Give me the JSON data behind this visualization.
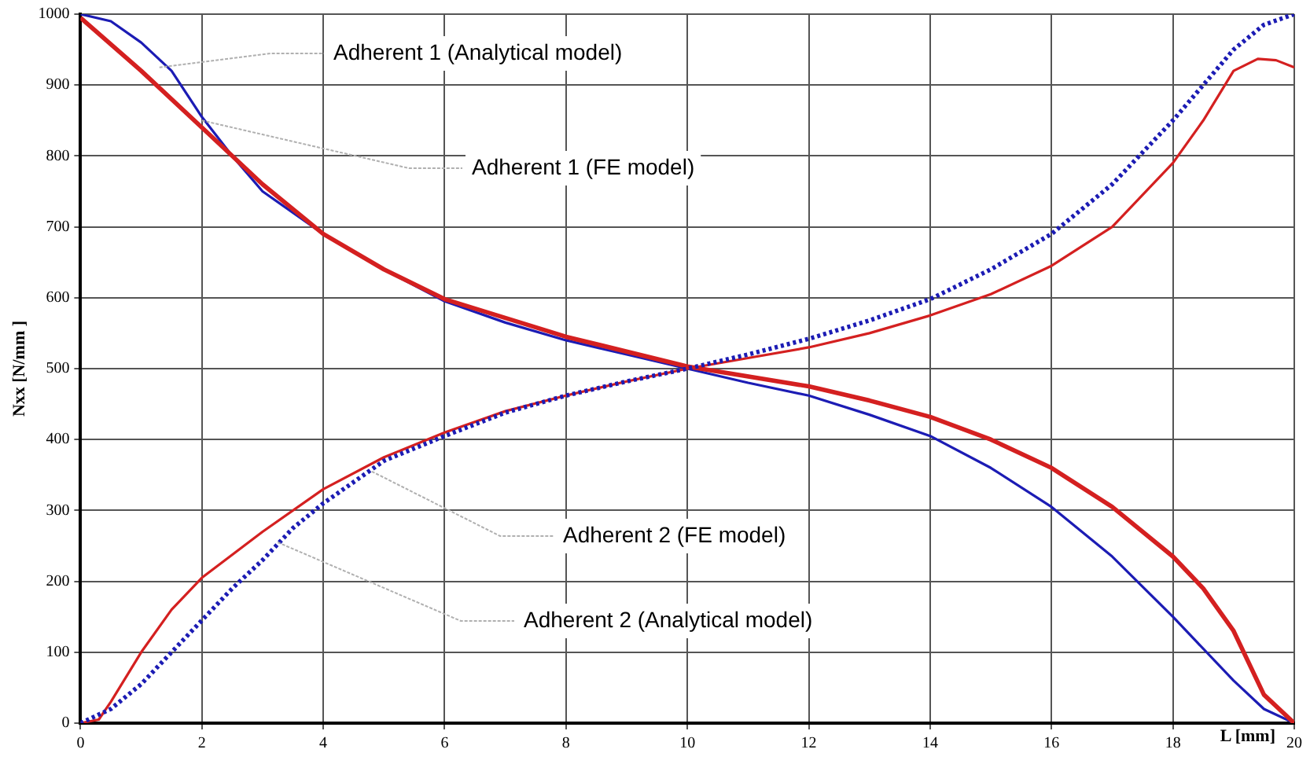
{
  "chart_data": {
    "type": "line",
    "xlabel": "L [mm]",
    "ylabel": "Nxx [N/mm ]",
    "xlim": [
      0,
      20
    ],
    "xticks": [
      0,
      2,
      4,
      6,
      8,
      10,
      12,
      14,
      16,
      18,
      20
    ],
    "ylim": [
      0,
      1000
    ],
    "yticks": [
      0,
      100,
      200,
      300,
      400,
      500,
      600,
      700,
      800,
      900,
      1000
    ],
    "grid": true,
    "legend": false,
    "marker": "none",
    "series": [
      {
        "color": "#1c1cb4",
        "line_style": "solid",
        "x": [
          0,
          0.5,
          1,
          1.5,
          2,
          2.5,
          3,
          4,
          5,
          6,
          7,
          8,
          9,
          10,
          11,
          12,
          13,
          14,
          15,
          16,
          17,
          18,
          19,
          19.5,
          20
        ],
        "values": [
          1000,
          990,
          960,
          920,
          855,
          800,
          750,
          690,
          640,
          595,
          565,
          540,
          520,
          500,
          480,
          462,
          435,
          405,
          360,
          305,
          235,
          150,
          60,
          20,
          0
        ]
      },
      {
        "color": "#d42020",
        "line_style": "solid",
        "x": [
          0,
          1,
          2,
          3,
          4,
          5,
          6,
          8,
          10,
          12,
          13,
          14,
          15,
          16,
          17,
          18,
          18.5,
          19,
          19.5,
          20
        ],
        "values": [
          995,
          920,
          840,
          760,
          690,
          640,
          598,
          545,
          503,
          475,
          455,
          432,
          400,
          360,
          305,
          235,
          190,
          130,
          40,
          0
        ]
      },
      {
        "color": "#d42020",
        "line_style": "solid",
        "x": [
          0,
          0.3,
          0.5,
          1,
          1.5,
          2,
          3,
          4,
          5,
          6,
          7,
          8,
          9,
          10,
          11,
          12,
          13,
          14,
          15,
          16,
          17,
          18,
          18.5,
          19,
          19.4,
          19.7,
          20
        ],
        "values": [
          0,
          5,
          30,
          100,
          160,
          205,
          270,
          330,
          375,
          410,
          440,
          462,
          482,
          500,
          515,
          530,
          550,
          575,
          605,
          645,
          700,
          790,
          850,
          920,
          937,
          935,
          925
        ]
      },
      {
        "color": "#1c1cb4",
        "line_style": "dotted",
        "x": [
          0,
          0.5,
          1,
          1.5,
          2,
          2.5,
          3,
          3.5,
          4,
          5,
          6,
          7,
          8,
          9,
          10,
          11,
          12,
          13,
          14,
          15,
          16,
          17,
          18,
          18.5,
          19,
          19.5,
          20
        ],
        "values": [
          0,
          20,
          55,
          100,
          145,
          190,
          230,
          275,
          310,
          370,
          405,
          438,
          462,
          482,
          500,
          520,
          542,
          568,
          598,
          640,
          690,
          760,
          850,
          900,
          950,
          985,
          1000
        ]
      }
    ],
    "annotations": [
      {
        "text": "Adherent 1 (Analytical model)",
        "x": 1.3,
        "y": 925
      },
      {
        "text": "Adherent 1 (FE model)",
        "x": 2,
        "y": 850
      },
      {
        "text": "Adherent 2 (FE model)",
        "x": 4.8,
        "y": 355
      },
      {
        "text": "Adherent 2 (Analytical model)",
        "x": 3.25,
        "y": 255
      }
    ]
  }
}
